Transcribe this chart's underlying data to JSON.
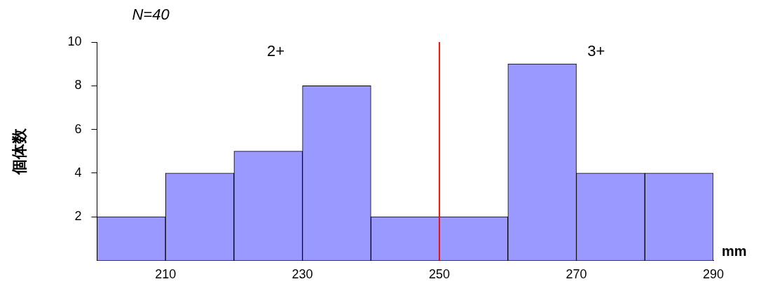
{
  "chart_data": {
    "type": "histogram",
    "bins": [
      200,
      210,
      220,
      230,
      240,
      250,
      260,
      270,
      280,
      290
    ],
    "values": [
      2,
      4,
      5,
      8,
      2,
      2,
      9,
      4,
      4
    ],
    "color": "#9999ff",
    "xlabel": "mm",
    "ylabel": "個体数",
    "xlim": [
      200,
      290
    ],
    "xticks": [
      210,
      230,
      250,
      270,
      290
    ],
    "ylim": [
      0,
      10
    ],
    "yticks": [
      2,
      4,
      6,
      8,
      10
    ],
    "grid": false,
    "legend": false,
    "ref_lines": [
      {
        "axis": "x",
        "value": 250,
        "color": "#ee1111"
      }
    ],
    "annotations": [
      "N=40",
      "2+",
      "3+"
    ]
  }
}
